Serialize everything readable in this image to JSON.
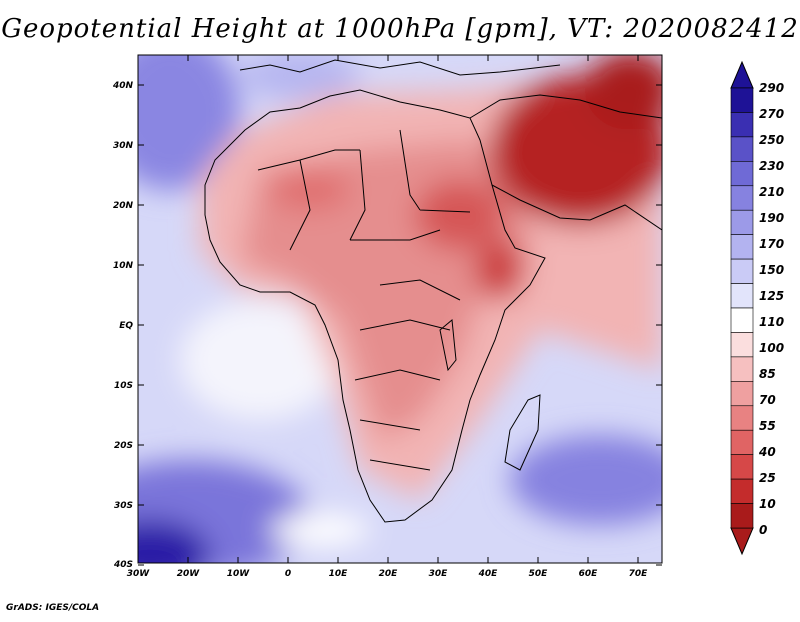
{
  "title": "Geopotential Height at 1000hPa [gpm], VT: 2020082412",
  "credit": "GrADS: IGES/COLA",
  "map": {
    "lon_labels": [
      "30W",
      "20W",
      "10W",
      "0",
      "10E",
      "20E",
      "30E",
      "40E",
      "50E",
      "60E",
      "70E"
    ],
    "lat_labels": [
      "40N",
      "30N",
      "20N",
      "10N",
      "EQ",
      "10S",
      "20S",
      "30S",
      "40S"
    ]
  },
  "colorbar": {
    "levels": [
      "290",
      "270",
      "250",
      "230",
      "210",
      "190",
      "170",
      "150",
      "125",
      "110",
      "100",
      "85",
      "70",
      "55",
      "40",
      "25",
      "10",
      "0"
    ],
    "colors": [
      "#1e1296",
      "#3a2fb2",
      "#5a52c8",
      "#6f6ad6",
      "#8682e0",
      "#9c9ae8",
      "#b3b3f0",
      "#cacbf6",
      "#e2e4fb",
      "#ffffff",
      "#fbdede",
      "#f6c0c0",
      "#efa0a0",
      "#e88282",
      "#e06464",
      "#d64848",
      "#c42c2c",
      "#a91b1b"
    ]
  }
}
